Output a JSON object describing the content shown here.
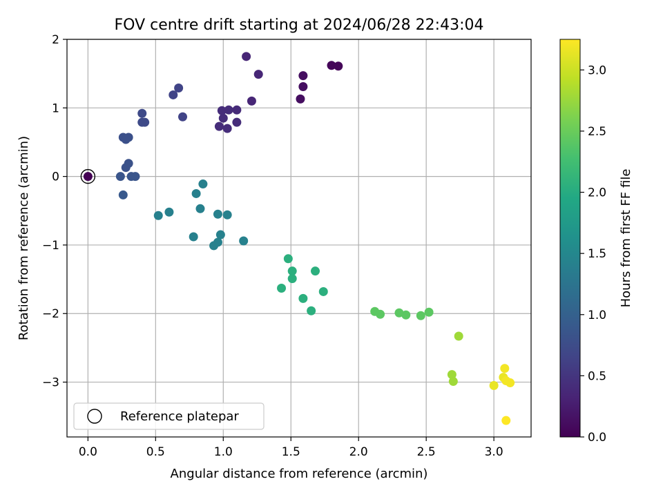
{
  "chart_data": {
    "type": "scatter",
    "title": "FOV centre drift starting at 2024/06/28 22:43:04",
    "xlabel": "Angular distance from reference (arcmin)",
    "ylabel": "Rotation from reference (arcmin)",
    "xlim": [
      -0.155,
      3.275
    ],
    "ylim": [
      -3.8,
      2.0
    ],
    "xticks": [
      0.0,
      0.5,
      1.0,
      1.5,
      2.0,
      2.5,
      3.0
    ],
    "xtick_labels": [
      "0.0",
      "0.5",
      "1.0",
      "1.5",
      "2.0",
      "2.5",
      "3.0"
    ],
    "yticks": [
      2,
      1,
      0,
      -1,
      -2,
      -3
    ],
    "ytick_labels": [
      "2",
      "1",
      "0",
      "−1",
      "−2",
      "−3"
    ],
    "grid": true,
    "colormap": "viridis",
    "colorbar": {
      "label": "Hours from first FF file",
      "range": [
        0.0,
        3.25
      ],
      "ticks": [
        0.0,
        0.5,
        1.0,
        1.5,
        2.0,
        2.5,
        3.0
      ],
      "tick_labels": [
        "0.0",
        "0.5",
        "1.0",
        "1.5",
        "2.0",
        "2.5",
        "3.0"
      ]
    },
    "legend": {
      "position": "lower-left",
      "entries": [
        "Reference platepar"
      ]
    },
    "reference_point": {
      "x": 0.0,
      "y": 0.0,
      "hours": 0.0
    },
    "points": [
      {
        "x": 1.8,
        "y": 1.62,
        "c": 0.05
      },
      {
        "x": 1.85,
        "y": 1.61,
        "c": 0.05
      },
      {
        "x": 1.59,
        "y": 1.47,
        "c": 0.12
      },
      {
        "x": 1.59,
        "y": 1.31,
        "c": 0.12
      },
      {
        "x": 1.57,
        "y": 1.13,
        "c": 0.12
      },
      {
        "x": 1.17,
        "y": 1.75,
        "c": 0.35
      },
      {
        "x": 1.26,
        "y": 1.49,
        "c": 0.35
      },
      {
        "x": 1.21,
        "y": 1.1,
        "c": 0.35
      },
      {
        "x": 1.1,
        "y": 0.97,
        "c": 0.4
      },
      {
        "x": 0.99,
        "y": 0.96,
        "c": 0.42
      },
      {
        "x": 1.04,
        "y": 0.97,
        "c": 0.42
      },
      {
        "x": 1.0,
        "y": 0.85,
        "c": 0.42
      },
      {
        "x": 1.1,
        "y": 0.79,
        "c": 0.42
      },
      {
        "x": 0.97,
        "y": 0.73,
        "c": 0.42
      },
      {
        "x": 1.03,
        "y": 0.7,
        "c": 0.42
      },
      {
        "x": 0.63,
        "y": 1.19,
        "c": 0.65
      },
      {
        "x": 0.67,
        "y": 1.29,
        "c": 0.65
      },
      {
        "x": 0.7,
        "y": 0.87,
        "c": 0.65
      },
      {
        "x": 0.4,
        "y": 0.92,
        "c": 0.72
      },
      {
        "x": 0.4,
        "y": 0.79,
        "c": 0.72
      },
      {
        "x": 0.42,
        "y": 0.79,
        "c": 0.72
      },
      {
        "x": 0.26,
        "y": 0.57,
        "c": 0.8
      },
      {
        "x": 0.28,
        "y": 0.54,
        "c": 0.8
      },
      {
        "x": 0.3,
        "y": 0.57,
        "c": 0.8
      },
      {
        "x": 0.3,
        "y": 0.19,
        "c": 0.82
      },
      {
        "x": 0.28,
        "y": 0.13,
        "c": 0.82
      },
      {
        "x": 0.24,
        "y": 0.0,
        "c": 0.85
      },
      {
        "x": 0.32,
        "y": 0.0,
        "c": 0.85
      },
      {
        "x": 0.35,
        "y": 0.0,
        "c": 0.85
      },
      {
        "x": 0.26,
        "y": -0.27,
        "c": 0.9
      },
      {
        "x": 0.52,
        "y": -0.57,
        "c": 1.4
      },
      {
        "x": 0.6,
        "y": -0.52,
        "c": 1.4
      },
      {
        "x": 0.8,
        "y": -0.25,
        "c": 1.4
      },
      {
        "x": 0.85,
        "y": -0.11,
        "c": 1.4
      },
      {
        "x": 0.83,
        "y": -0.47,
        "c": 1.4
      },
      {
        "x": 0.78,
        "y": -0.88,
        "c": 1.4
      },
      {
        "x": 0.96,
        "y": -0.55,
        "c": 1.42
      },
      {
        "x": 1.03,
        "y": -0.56,
        "c": 1.42
      },
      {
        "x": 0.98,
        "y": -0.85,
        "c": 1.42
      },
      {
        "x": 0.96,
        "y": -0.96,
        "c": 1.42
      },
      {
        "x": 0.93,
        "y": -1.01,
        "c": 1.42
      },
      {
        "x": 1.15,
        "y": -0.94,
        "c": 1.42
      },
      {
        "x": 1.48,
        "y": -1.2,
        "c": 2.05
      },
      {
        "x": 1.51,
        "y": -1.38,
        "c": 2.05
      },
      {
        "x": 1.51,
        "y": -1.49,
        "c": 2.05
      },
      {
        "x": 1.68,
        "y": -1.38,
        "c": 2.05
      },
      {
        "x": 1.43,
        "y": -1.63,
        "c": 2.05
      },
      {
        "x": 1.59,
        "y": -1.78,
        "c": 2.05
      },
      {
        "x": 1.74,
        "y": -1.68,
        "c": 2.05
      },
      {
        "x": 1.65,
        "y": -1.96,
        "c": 2.05
      },
      {
        "x": 2.12,
        "y": -1.97,
        "c": 2.42
      },
      {
        "x": 2.16,
        "y": -2.01,
        "c": 2.42
      },
      {
        "x": 2.3,
        "y": -1.99,
        "c": 2.42
      },
      {
        "x": 2.35,
        "y": -2.02,
        "c": 2.42
      },
      {
        "x": 2.46,
        "y": -2.03,
        "c": 2.42
      },
      {
        "x": 2.52,
        "y": -1.98,
        "c": 2.42
      },
      {
        "x": 2.74,
        "y": -2.33,
        "c": 2.78
      },
      {
        "x": 2.69,
        "y": -2.89,
        "c": 2.78
      },
      {
        "x": 2.7,
        "y": -2.99,
        "c": 2.78
      },
      {
        "x": 3.0,
        "y": -3.05,
        "c": 3.15
      },
      {
        "x": 3.07,
        "y": -2.93,
        "c": 3.15
      },
      {
        "x": 3.08,
        "y": -2.8,
        "c": 3.2
      },
      {
        "x": 3.09,
        "y": -2.98,
        "c": 3.2
      },
      {
        "x": 3.12,
        "y": -3.01,
        "c": 3.2
      },
      {
        "x": 3.09,
        "y": -3.56,
        "c": 3.25
      }
    ]
  }
}
